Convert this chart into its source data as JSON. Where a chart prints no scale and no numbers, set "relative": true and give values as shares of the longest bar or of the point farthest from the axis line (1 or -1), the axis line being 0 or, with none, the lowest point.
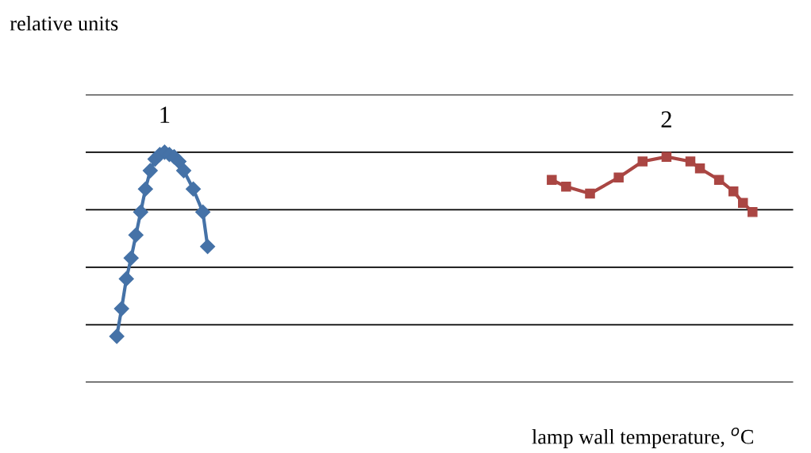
{
  "chart_data": {
    "type": "line",
    "relative": true,
    "annotations": [
      "relative units"
    ],
    "xlabel": "lamp wall temperature, $^{o}$C",
    "tick_labels": false,
    "grid": "y",
    "line_style": "solid",
    "categories": [
      null,
      null,
      null,
      null,
      null,
      null,
      null,
      null,
      null,
      null,
      null,
      null,
      null,
      null,
      null,
      null,
      null,
      null,
      null,
      null,
      null,
      null,
      null,
      null,
      null,
      null,
      null,
      null,
      null,
      null,
      null,
      null,
      null,
      null,
      null,
      null,
      null,
      null,
      null,
      null,
      null,
      null,
      null,
      null,
      null,
      null,
      null,
      null,
      null,
      null,
      null,
      null,
      null,
      null,
      null,
      null,
      null,
      null,
      null,
      null,
      null,
      null,
      null,
      null,
      null,
      null,
      null,
      null,
      null,
      null,
      null,
      null,
      null,
      null,
      null,
      null,
      null,
      null,
      null,
      null,
      null,
      null,
      null,
      null,
      null,
      null,
      null,
      null,
      null,
      null,
      null,
      null,
      null,
      null,
      null,
      null,
      null,
      null,
      null,
      null,
      null,
      null,
      null,
      null,
      null,
      null,
      null,
      null,
      null,
      null,
      null,
      null,
      null,
      null,
      null,
      null,
      null,
      null,
      null,
      null,
      null,
      null,
      null,
      null,
      null,
      null,
      null,
      null,
      null,
      null,
      null,
      null,
      null,
      null,
      null,
      null,
      null,
      null,
      null,
      null,
      null,
      null,
      null,
      null,
      null,
      null,
      null,
      null
    ],
    "series": [
      {
        "name": "1",
        "color": "#4572a7",
        "marker": "diamond",
        "values": [
          null,
          null,
          null,
          null,
          null,
          null,
          0.2,
          0.32,
          0.45,
          0.54,
          0.64,
          0.74,
          0.84,
          0.92,
          0.97,
          0.99,
          1,
          0.99,
          0.98,
          0.96,
          0.92,
          null,
          0.84,
          null,
          0.74,
          0.59,
          null,
          null,
          null,
          null,
          null,
          null,
          null,
          null,
          null,
          null,
          null,
          null,
          null,
          null,
          null,
          null,
          null,
          null,
          null,
          null,
          null,
          null,
          null,
          null,
          null,
          null,
          null,
          null,
          null,
          null,
          null,
          null,
          null,
          null,
          null,
          null,
          null,
          null,
          null,
          null,
          null,
          null,
          null,
          null,
          null,
          null,
          null,
          null,
          null,
          null,
          null,
          null,
          null,
          null,
          null,
          null,
          null,
          null,
          null,
          null,
          null,
          null,
          null,
          null,
          null,
          null,
          null,
          null,
          null,
          null,
          null,
          null,
          null,
          null,
          null,
          null,
          null,
          null,
          null,
          null,
          null,
          null,
          null,
          null,
          null,
          null,
          null,
          null,
          null,
          null,
          null,
          null,
          null,
          null,
          null,
          null,
          null,
          null,
          null,
          null,
          null,
          null,
          null,
          null,
          null,
          null,
          null,
          null,
          null,
          null,
          null,
          null,
          null,
          null,
          null,
          null,
          null,
          null,
          null,
          null,
          null,
          null
        ]
      },
      {
        "name": "2",
        "color": "#aa4643",
        "marker": "square",
        "values": [
          null,
          null,
          null,
          null,
          null,
          null,
          null,
          null,
          null,
          null,
          null,
          null,
          null,
          null,
          null,
          null,
          null,
          null,
          null,
          null,
          null,
          null,
          null,
          null,
          null,
          null,
          null,
          null,
          null,
          null,
          null,
          null,
          null,
          null,
          null,
          null,
          null,
          null,
          null,
          null,
          null,
          null,
          null,
          null,
          null,
          null,
          null,
          null,
          null,
          null,
          null,
          null,
          null,
          null,
          null,
          null,
          null,
          null,
          null,
          null,
          null,
          null,
          null,
          null,
          null,
          null,
          null,
          null,
          null,
          null,
          null,
          null,
          null,
          null,
          null,
          null,
          null,
          null,
          null,
          null,
          null,
          null,
          null,
          null,
          null,
          null,
          null,
          null,
          null,
          null,
          null,
          null,
          null,
          null,
          null,
          null,
          null,
          0.88,
          null,
          null,
          0.85,
          null,
          null,
          null,
          null,
          0.82,
          null,
          null,
          null,
          null,
          null,
          0.89,
          null,
          null,
          null,
          null,
          0.96,
          null,
          null,
          null,
          null,
          0.98,
          null,
          null,
          null,
          null,
          0.96,
          null,
          0.93,
          null,
          null,
          null,
          0.88,
          null,
          null,
          0.83,
          null,
          0.78,
          null,
          0.74,
          null,
          null,
          null,
          null,
          null,
          null,
          null,
          null
        ]
      }
    ]
  }
}
